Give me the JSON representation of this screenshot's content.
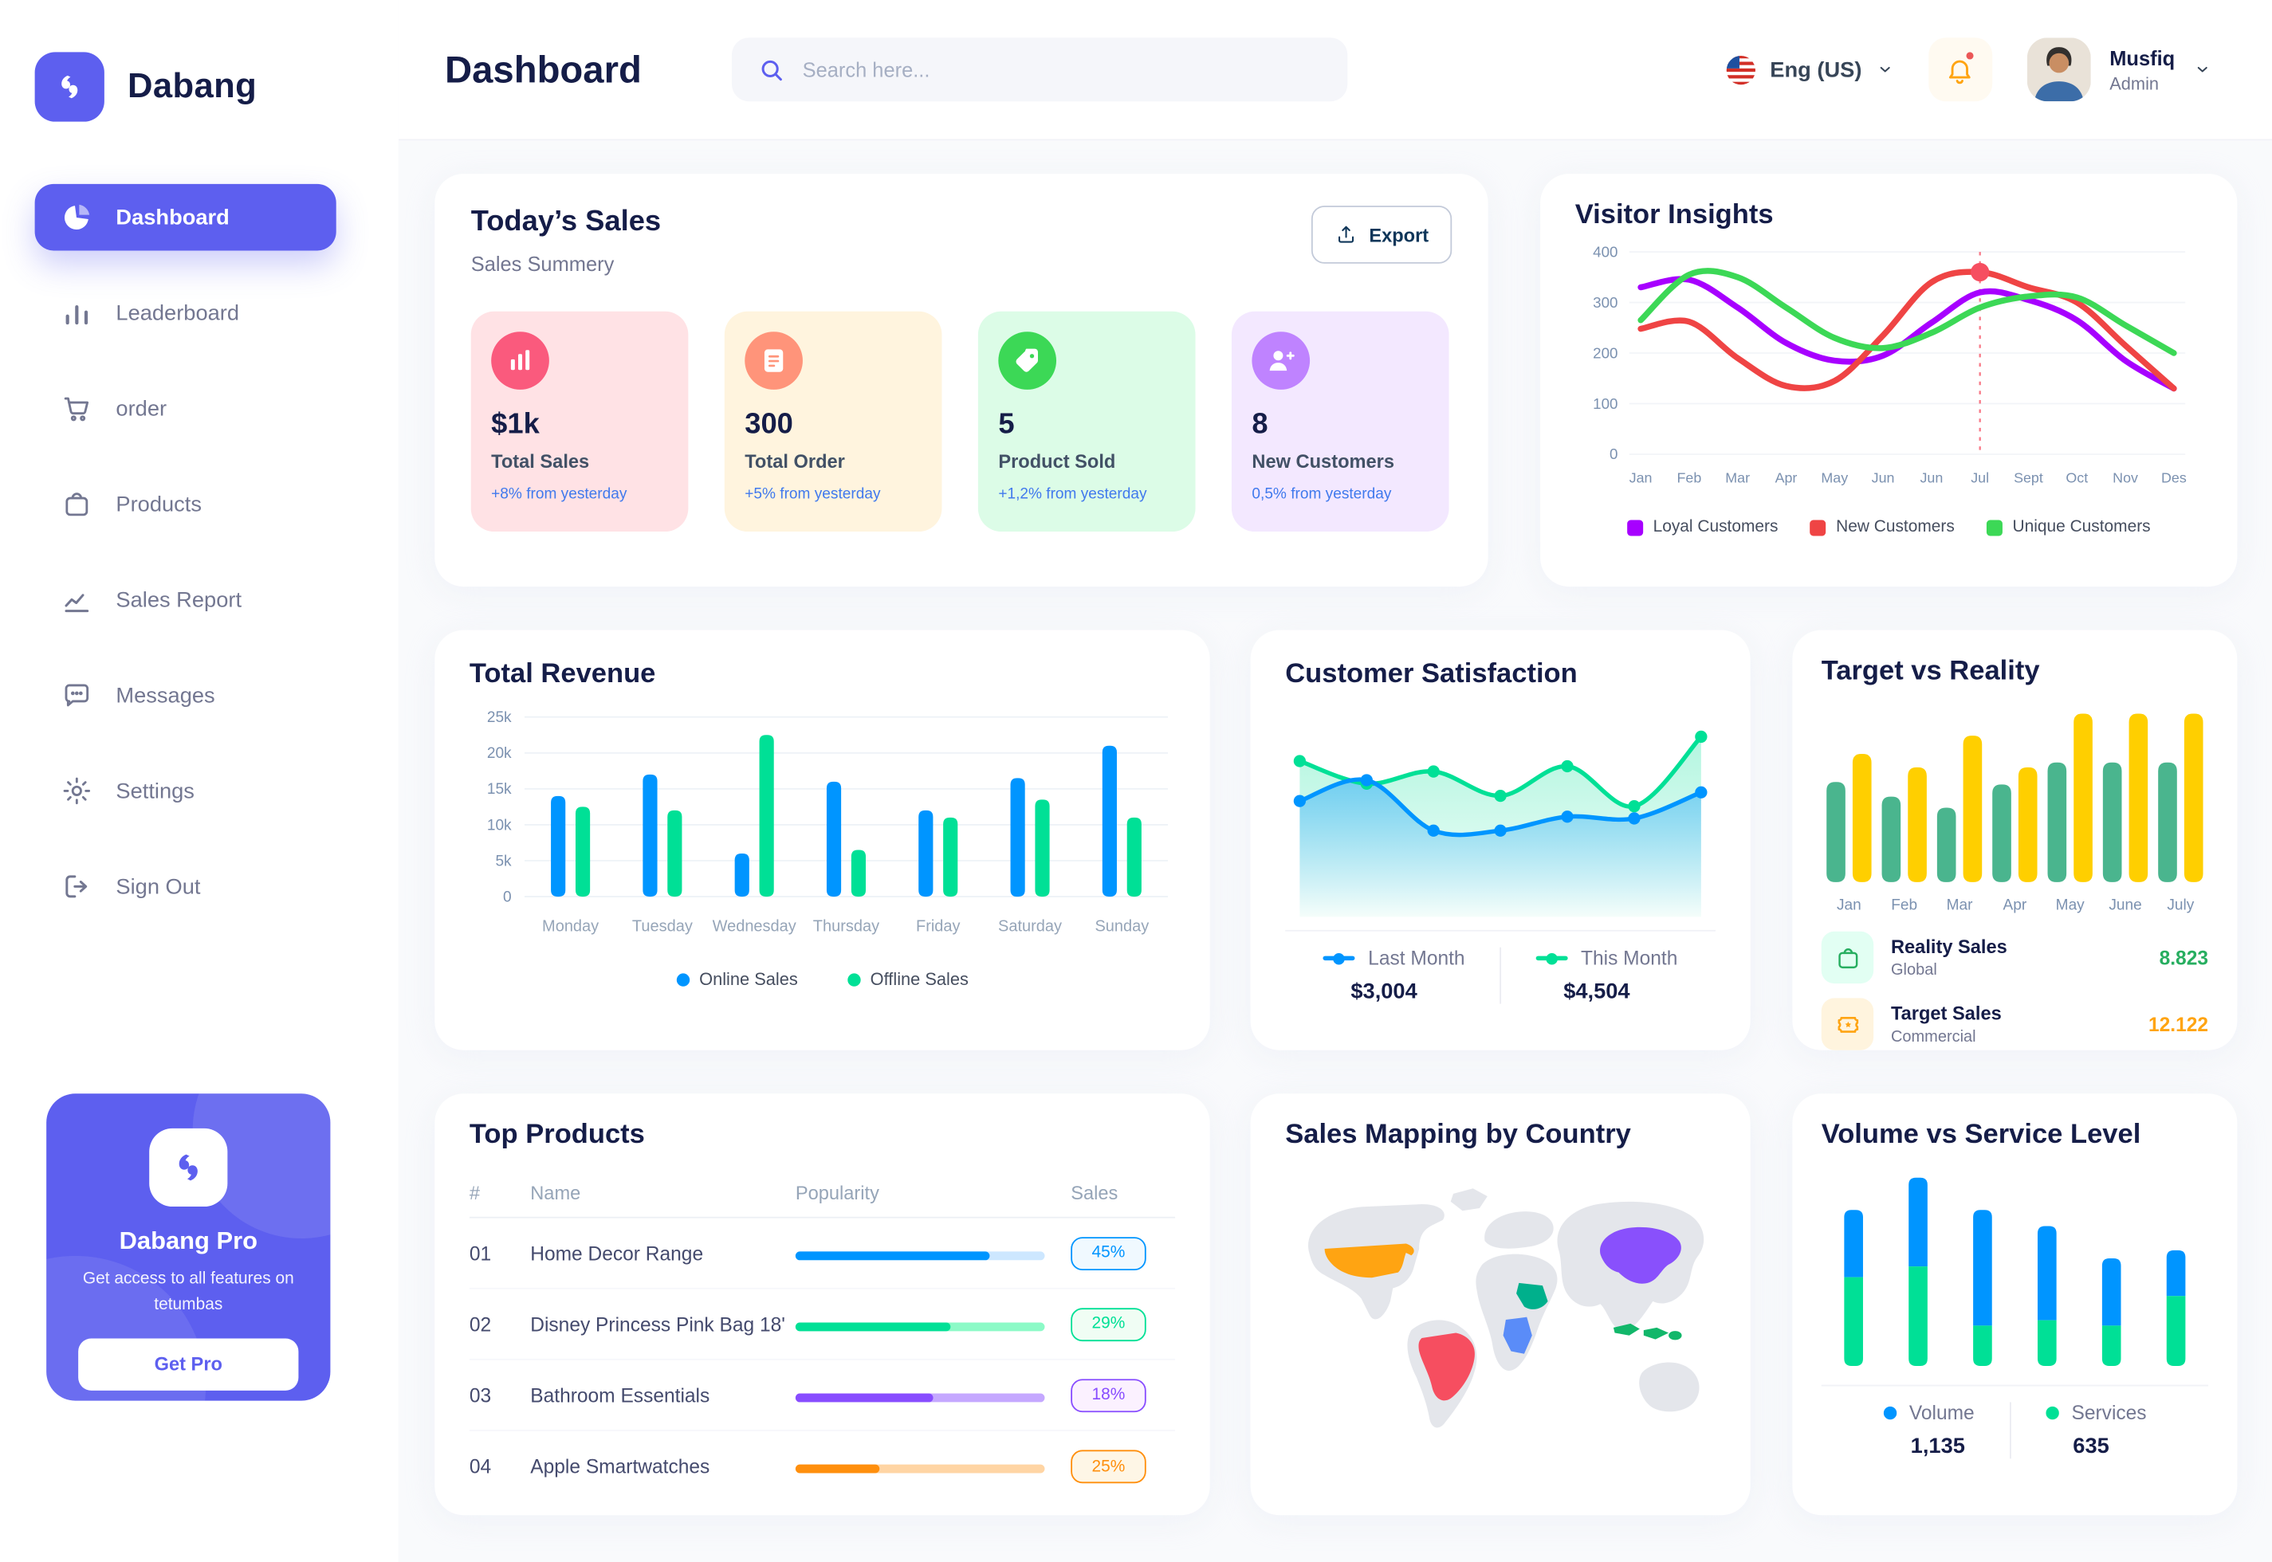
{
  "sidebar": {
    "logo_label": "Dabang",
    "items": [
      {
        "id": "dashboard",
        "label": "Dashboard",
        "active": true
      },
      {
        "id": "leaderboard",
        "label": "Leaderboard",
        "active": false
      },
      {
        "id": "order",
        "label": "order",
        "active": false
      },
      {
        "id": "products",
        "label": "Products",
        "active": false
      },
      {
        "id": "sales-report",
        "label": "Sales Report",
        "active": false
      },
      {
        "id": "messages",
        "label": "Messages",
        "active": false
      },
      {
        "id": "settings",
        "label": "Settings",
        "active": false
      },
      {
        "id": "sign-out",
        "label": "Sign Out",
        "active": false
      }
    ],
    "pro": {
      "title": "Dabang Pro",
      "desc": "Get access to all features on tetumbas",
      "button": "Get Pro"
    }
  },
  "header": {
    "title": "Dashboard",
    "search_placeholder": "Search here...",
    "language": "Eng (US)",
    "user": {
      "name": "Musfiq",
      "role": "Admin"
    }
  },
  "todays_sales": {
    "title": "Today’s Sales",
    "subtitle": "Sales Summery",
    "export_label": "Export",
    "cards": [
      {
        "value": "$1k",
        "label": "Total Sales",
        "delta": "+8% from yesterday",
        "bg": "#FFE2E5",
        "icon_bg": "#FA5A7D",
        "icon": "chart-bars"
      },
      {
        "value": "300",
        "label": "Total Order",
        "delta": "+5% from yesterday",
        "bg": "#FFF4DE",
        "icon_bg": "#FF947A",
        "icon": "order-file"
      },
      {
        "value": "5",
        "label": "Product Sold",
        "delta": "+1,2% from yesterday",
        "bg": "#DCFCE7",
        "icon_bg": "#3CD856",
        "icon": "tag-check"
      },
      {
        "value": "8",
        "label": "New Customers",
        "delta": "0,5% from yesterday",
        "bg": "#F3E8FF",
        "icon_bg": "#BF83FF",
        "icon": "user-plus"
      }
    ]
  },
  "chart_data": [
    {
      "id": "visitor-insights",
      "type": "line",
      "title": "Visitor Insights",
      "categories": [
        "Jan",
        "Feb",
        "Mar",
        "Apr",
        "May",
        "Jun",
        "Jun",
        "Jul",
        "Sept",
        "Oct",
        "Nov",
        "Des"
      ],
      "ylim": [
        0,
        400
      ],
      "yticks": [
        0,
        100,
        200,
        300,
        400
      ],
      "grid": true,
      "legend_position": "bottom",
      "series": [
        {
          "name": "Loyal Customers",
          "color": "#A700FF",
          "values": [
            330,
            345,
            290,
            220,
            185,
            195,
            260,
            320,
            305,
            265,
            185,
            130
          ]
        },
        {
          "name": "New Customers",
          "color": "#EF4444",
          "values": [
            248,
            262,
            190,
            135,
            145,
            235,
            340,
            360,
            330,
            300,
            215,
            130
          ]
        },
        {
          "name": "Unique Customers",
          "color": "#3CD856",
          "values": [
            265,
            355,
            350,
            290,
            230,
            210,
            240,
            290,
            312,
            310,
            255,
            200
          ]
        }
      ],
      "marker": {
        "series": 1,
        "index": 7,
        "color": "#F64E60"
      }
    },
    {
      "id": "total-revenue",
      "type": "bar",
      "title": "Total Revenue",
      "categories": [
        "Monday",
        "Tuesday",
        "Wednesday",
        "Thursday",
        "Friday",
        "Saturday",
        "Sunday"
      ],
      "ylim": [
        0,
        25000
      ],
      "ytick_labels": [
        "0",
        "5k",
        "10k",
        "15k",
        "20k",
        "25k"
      ],
      "grid": true,
      "legend_position": "bottom",
      "series": [
        {
          "name": "Online Sales",
          "color": "#0095FF",
          "values": [
            14000,
            17000,
            6000,
            16000,
            12000,
            16500,
            21000
          ]
        },
        {
          "name": "Offline Sales",
          "color": "#00E096",
          "values": [
            12500,
            12000,
            22500,
            6500,
            11000,
            13500,
            11000
          ]
        }
      ]
    },
    {
      "id": "customer-satisfaction",
      "type": "area",
      "title": "Customer Satisfaction",
      "ylim": [
        0,
        100
      ],
      "grid": false,
      "legend_position": "bottom",
      "series": [
        {
          "name": "Last Month",
          "color": "#0095FF",
          "value_label": "$3,004",
          "values": [
            55,
            67,
            38,
            38,
            46,
            45,
            60
          ]
        },
        {
          "name": "This Month",
          "color": "#00E096",
          "value_label": "$4,504",
          "values": [
            78,
            65,
            72,
            58,
            75,
            52,
            92
          ]
        }
      ]
    },
    {
      "id": "target-vs-reality",
      "type": "bar",
      "title": "Target vs Reality",
      "categories": [
        "Jan",
        "Feb",
        "Mar",
        "Apr",
        "May",
        "June",
        "July"
      ],
      "ylim": [
        0,
        14
      ],
      "grid": false,
      "legend_position": "bottom",
      "series": [
        {
          "name": "Reality Sales",
          "color": "#4AB58E",
          "values": [
            8.2,
            7,
            6.1,
            8,
            9.8,
            9.8,
            9.8
          ]
        },
        {
          "name": "Target Sales",
          "color": "#FFCF00",
          "values": [
            10.5,
            9.4,
            12,
            9.4,
            13.8,
            13.8,
            13.8
          ]
        }
      ],
      "legend": [
        {
          "name": "Reality Sales",
          "sub": "Global",
          "value": "8.823",
          "value_color": "#27AE60",
          "icon": "bag",
          "icon_bg": "#E2FFF3",
          "icon_color": "#27AE60"
        },
        {
          "name": "Target Sales",
          "sub": "Commercial",
          "value": "12.122",
          "value_color": "#FFA412",
          "icon": "ticket",
          "icon_bg": "#FFF4DE",
          "icon_color": "#FFA412"
        }
      ]
    },
    {
      "id": "volume-vs-service",
      "type": "stacked-bar",
      "title": "Volume vs Service Level",
      "grid": false,
      "legend_position": "bottom",
      "series": [
        {
          "name": "Volume",
          "color": "#0095FF",
          "total_label": "1,135",
          "values": [
            25,
            33,
            43,
            35,
            25,
            17
          ]
        },
        {
          "name": "Services",
          "color": "#00E096",
          "total_label": "635",
          "values": [
            33,
            37,
            15,
            17,
            15,
            26
          ]
        }
      ]
    }
  ],
  "top_products": {
    "title": "Top Products",
    "headers": [
      "#",
      "Name",
      "Popularity",
      "Sales"
    ],
    "rows": [
      {
        "num": "01",
        "name": "Home Decor Range",
        "popularity": 78,
        "sales": "45%",
        "color": "#0095FF",
        "track": "#CDE7FF",
        "badge_bg": "#F0F9FF"
      },
      {
        "num": "02",
        "name": "Disney Princess Pink Bag 18'",
        "popularity": 62,
        "sales": "29%",
        "color": "#00E096",
        "track": "#8CFAC7",
        "badge_bg": "#F0FDF4"
      },
      {
        "num": "03",
        "name": "Bathroom Essentials",
        "popularity": 55,
        "sales": "18%",
        "color": "#884DFF",
        "track": "#C5A8FF",
        "badge_bg": "#FBF1FF"
      },
      {
        "num": "04",
        "name": "Apple Smartwatches",
        "popularity": 34,
        "sales": "25%",
        "color": "#FF8F0D",
        "track": "#FFD5A4",
        "badge_bg": "#FEF6E6"
      }
    ]
  },
  "sales_map": {
    "title": "Sales Mapping by Country",
    "countries": [
      {
        "name": "United States",
        "color": "#FFA412"
      },
      {
        "name": "Brazil",
        "color": "#F64E60"
      },
      {
        "name": "Saudi Arabia",
        "color": "#00B08C"
      },
      {
        "name": "DR Congo",
        "color": "#5A8CF8"
      },
      {
        "name": "China",
        "color": "#8950FC"
      },
      {
        "name": "Indonesia",
        "color": "#12B76A"
      }
    ]
  }
}
